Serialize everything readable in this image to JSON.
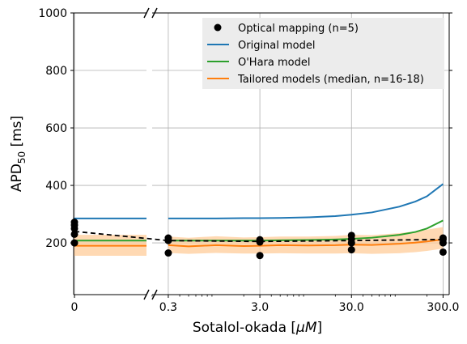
{
  "chart_data": {
    "type": "line",
    "xlabel_main": "Sotalol-okada [",
    "xlabel_unit": "μM",
    "xlabel_close": "]",
    "ylabel_main": "APD",
    "ylabel_sub": "50",
    "ylabel_unit": " [ms]",
    "ylim": [
      20,
      1000
    ],
    "yticks": [
      200,
      400,
      600,
      800,
      1000
    ],
    "ytick_labels": [
      "200",
      "400",
      "600",
      "800",
      "1000"
    ],
    "xscale": "log",
    "xlim_right": [
      0.2,
      350
    ],
    "xticks": [
      0,
      0.3,
      3.0,
      30.0,
      300.0
    ],
    "xtick_labels": [
      "0",
      "0.3",
      "3.0",
      "30.0",
      "300.0"
    ],
    "grid": true,
    "axis_break": "between 0 and 0.3",
    "legend": {
      "placement": "top-right",
      "entries": [
        {
          "label": "Optical mapping (n=5)",
          "color": "#000000",
          "marker": "dot"
        },
        {
          "label": "Original model",
          "color": "#1f77b4"
        },
        {
          "label": "O'Hara model",
          "color": "#2ca02c"
        },
        {
          "label": "Tailored models (median, n=16-18)",
          "color": "#ff7f0e"
        }
      ]
    },
    "series": [
      {
        "name": "Original model",
        "color": "#1f77b4",
        "x": [
          0,
          0.3,
          0.5,
          1,
          2,
          3,
          5,
          10,
          20,
          30,
          50,
          100,
          150,
          200,
          300
        ],
        "y": [
          285,
          285,
          285,
          285,
          286,
          286,
          287,
          289,
          293,
          298,
          306,
          326,
          344,
          362,
          405
        ]
      },
      {
        "name": "O'Hara model",
        "color": "#2ca02c",
        "x": [
          0,
          0.3,
          0.5,
          1,
          2,
          3,
          5,
          10,
          20,
          30,
          50,
          100,
          150,
          200,
          300
        ],
        "y": [
          208,
          208,
          208,
          208,
          208,
          208,
          209,
          210,
          212,
          214,
          218,
          228,
          238,
          250,
          278
        ]
      },
      {
        "name": "Tailored models (median, n=16-18)",
        "color": "#ff7f0e",
        "x": [
          0,
          0.3,
          0.5,
          1,
          2,
          3,
          5,
          10,
          20,
          30,
          50,
          100,
          150,
          200,
          300
        ],
        "y": [
          190,
          192,
          188,
          192,
          189,
          190,
          192,
          191,
          192,
          194,
          193,
          197,
          201,
          205,
          212
        ],
        "band_low": [
          155,
          165,
          162,
          165,
          163,
          163,
          164,
          163,
          163,
          164,
          162,
          164,
          168,
          172,
          180
        ],
        "band_high": [
          228,
          222,
          218,
          223,
          219,
          220,
          222,
          222,
          224,
          228,
          227,
          234,
          240,
          246,
          255
        ]
      },
      {
        "name": "Optical mapping mean",
        "color": "#000000",
        "dashed": true,
        "x": [
          0,
          0.3,
          3,
          30,
          300
        ],
        "y": [
          240,
          208,
          205,
          208,
          212
        ]
      }
    ],
    "optical_points": {
      "x": [
        0,
        0,
        0,
        0,
        0,
        0.3,
        0.3,
        0.3,
        3,
        3,
        3,
        30,
        30,
        30,
        30,
        300,
        300,
        300,
        300
      ],
      "y": [
        200,
        230,
        250,
        262,
        272,
        165,
        208,
        217,
        156,
        203,
        211,
        176,
        200,
        213,
        226,
        168,
        200,
        212,
        217
      ]
    }
  }
}
